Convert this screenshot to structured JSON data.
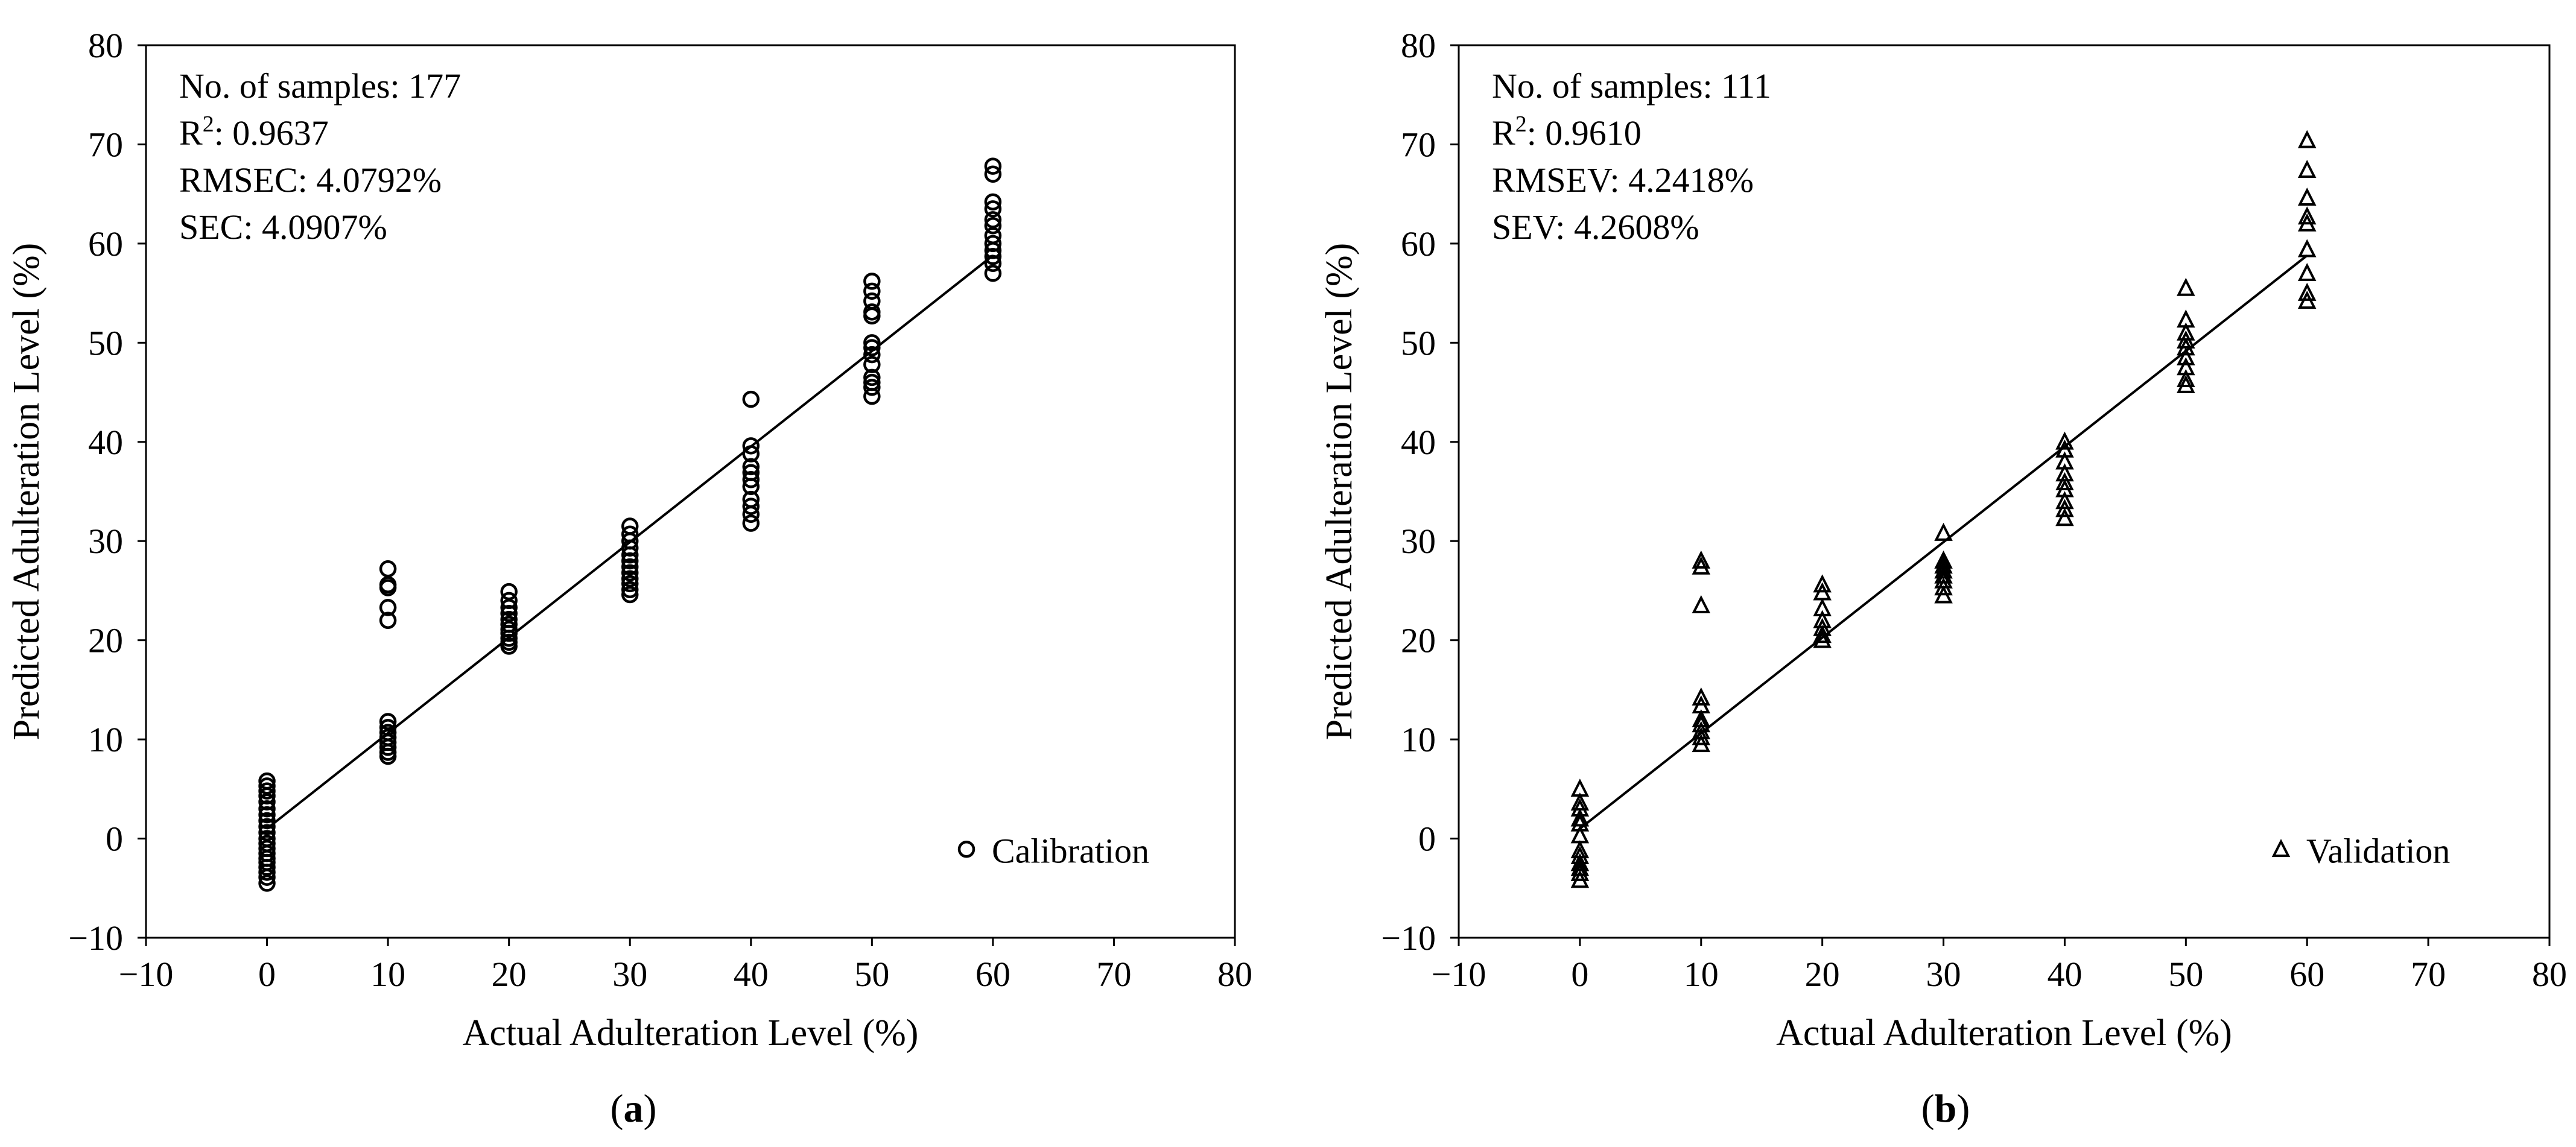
{
  "chart_data": [
    {
      "type": "scatter",
      "panel_label": "(a)",
      "panel_letter": "a",
      "xlabel": "Actual Adulteration Level (%)",
      "ylabel": "Predicted Adulteration Level (%)",
      "xlim": [
        -10,
        80
      ],
      "ylim": [
        -10,
        80
      ],
      "xticks": [
        -10,
        0,
        10,
        20,
        30,
        40,
        50,
        60,
        70,
        80
      ],
      "yticks": [
        -10,
        0,
        10,
        20,
        30,
        40,
        50,
        60,
        70,
        80
      ],
      "stats": [
        "No. of samples: 177",
        "R2: 0.9637",
        "RMSEC: 4.0792%",
        "SEC: 4.0907%"
      ],
      "legend": {
        "label": "Calibration",
        "marker": "circle",
        "position": "bottom-right"
      },
      "fit_line": {
        "x": [
          0,
          60
        ],
        "y": [
          1.0,
          58.8
        ]
      },
      "series": [
        {
          "name": "Calibration",
          "marker": "circle",
          "points": [
            [
              0,
              5.8
            ],
            [
              0,
              5.3
            ],
            [
              0,
              4.8
            ],
            [
              0,
              4.3
            ],
            [
              0,
              3.7
            ],
            [
              0,
              3.0
            ],
            [
              0,
              2.4
            ],
            [
              0,
              1.8
            ],
            [
              0,
              1.2
            ],
            [
              0,
              0.6
            ],
            [
              0,
              0.0
            ],
            [
              0,
              -0.5
            ],
            [
              0,
              -1.0
            ],
            [
              0,
              -1.5
            ],
            [
              0,
              -2.0
            ],
            [
              0,
              -2.4
            ],
            [
              0,
              -2.9
            ],
            [
              0,
              -3.4
            ],
            [
              0,
              -3.9
            ],
            [
              0,
              -4.5
            ],
            [
              10,
              27.2
            ],
            [
              10,
              25.6
            ],
            [
              10,
              25.3
            ],
            [
              10,
              23.3
            ],
            [
              10,
              22.0
            ],
            [
              10,
              11.8
            ],
            [
              10,
              11.2
            ],
            [
              10,
              10.7
            ],
            [
              10,
              10.2
            ],
            [
              10,
              9.7
            ],
            [
              10,
              9.2
            ],
            [
              10,
              8.7
            ],
            [
              10,
              8.3
            ],
            [
              20,
              24.9
            ],
            [
              20,
              24.0
            ],
            [
              20,
              23.3
            ],
            [
              20,
              22.7
            ],
            [
              20,
              22.1
            ],
            [
              20,
              21.6
            ],
            [
              20,
              21.1
            ],
            [
              20,
              20.7
            ],
            [
              20,
              20.2
            ],
            [
              20,
              19.8
            ],
            [
              20,
              19.4
            ],
            [
              30,
              31.5
            ],
            [
              30,
              30.7
            ],
            [
              30,
              30.0
            ],
            [
              30,
              29.3
            ],
            [
              30,
              28.6
            ],
            [
              30,
              28.0
            ],
            [
              30,
              27.4
            ],
            [
              30,
              26.8
            ],
            [
              30,
              26.2
            ],
            [
              30,
              25.7
            ],
            [
              30,
              25.1
            ],
            [
              30,
              24.6
            ],
            [
              40,
              44.3
            ],
            [
              40,
              39.6
            ],
            [
              40,
              38.8
            ],
            [
              40,
              37.5
            ],
            [
              40,
              36.9
            ],
            [
              40,
              36.2
            ],
            [
              40,
              35.5
            ],
            [
              40,
              34.2
            ],
            [
              40,
              33.5
            ],
            [
              40,
              32.7
            ],
            [
              40,
              31.8
            ],
            [
              50,
              56.2
            ],
            [
              50,
              55.2
            ],
            [
              50,
              54.2
            ],
            [
              50,
              53.1
            ],
            [
              50,
              52.7
            ],
            [
              50,
              50.0
            ],
            [
              50,
              49.5
            ],
            [
              50,
              48.8
            ],
            [
              50,
              47.8
            ],
            [
              50,
              46.5
            ],
            [
              50,
              46.0
            ],
            [
              50,
              45.5
            ],
            [
              50,
              44.6
            ],
            [
              60,
              67.8
            ],
            [
              60,
              67.0
            ],
            [
              60,
              64.2
            ],
            [
              60,
              63.5
            ],
            [
              60,
              62.4
            ],
            [
              60,
              61.8
            ],
            [
              60,
              60.8
            ],
            [
              60,
              60.0
            ],
            [
              60,
              59.3
            ],
            [
              60,
              58.7
            ],
            [
              60,
              58.0
            ],
            [
              60,
              57.0
            ]
          ]
        }
      ]
    },
    {
      "type": "scatter",
      "panel_label": "(b)",
      "panel_letter": "b",
      "xlabel": "Actual Adulteration Level (%)",
      "ylabel": "Predicted Adulteration Level (%)",
      "xlim": [
        -10,
        80
      ],
      "ylim": [
        -10,
        80
      ],
      "xticks": [
        -10,
        0,
        10,
        20,
        30,
        40,
        50,
        60,
        70,
        80
      ],
      "yticks": [
        -10,
        0,
        10,
        20,
        30,
        40,
        50,
        60,
        70,
        80
      ],
      "stats": [
        "No. of samples: 111",
        "R2: 0.9610",
        "RMSEV: 4.2418%",
        "SEV: 4.2608%"
      ],
      "legend": {
        "label": "Validation",
        "marker": "triangle",
        "position": "bottom-right"
      },
      "fit_line": {
        "x": [
          0,
          60
        ],
        "y": [
          1.0,
          58.8
        ]
      },
      "series": [
        {
          "name": "Validation",
          "marker": "triangle",
          "points": [
            [
              0,
              5.0
            ],
            [
              0,
              3.6
            ],
            [
              0,
              3.0
            ],
            [
              0,
              2.0
            ],
            [
              0,
              1.5
            ],
            [
              0,
              0.3
            ],
            [
              0,
              -1.2
            ],
            [
              0,
              -1.8
            ],
            [
              0,
              -2.5
            ],
            [
              0,
              -3.0
            ],
            [
              0,
              -3.5
            ],
            [
              0,
              -4.2
            ],
            [
              10,
              28.0
            ],
            [
              10,
              27.4
            ],
            [
              10,
              23.5
            ],
            [
              10,
              14.2
            ],
            [
              10,
              13.4
            ],
            [
              10,
              12.0
            ],
            [
              10,
              11.5
            ],
            [
              10,
              10.8
            ],
            [
              10,
              10.2
            ],
            [
              10,
              9.5
            ],
            [
              20,
              25.6
            ],
            [
              20,
              24.8
            ],
            [
              20,
              23.2
            ],
            [
              20,
              22.0
            ],
            [
              20,
              21.2
            ],
            [
              20,
              20.5
            ],
            [
              20,
              20.0
            ],
            [
              30,
              30.8
            ],
            [
              30,
              28.0
            ],
            [
              30,
              27.5
            ],
            [
              30,
              27.0
            ],
            [
              30,
              26.5
            ],
            [
              30,
              26.0
            ],
            [
              30,
              25.3
            ],
            [
              30,
              24.5
            ],
            [
              40,
              40.0
            ],
            [
              40,
              39.2
            ],
            [
              40,
              38.0
            ],
            [
              40,
              36.8
            ],
            [
              40,
              35.9
            ],
            [
              40,
              35.2
            ],
            [
              40,
              34.0
            ],
            [
              40,
              33.2
            ],
            [
              40,
              32.3
            ],
            [
              50,
              55.5
            ],
            [
              50,
              52.3
            ],
            [
              50,
              51.0
            ],
            [
              50,
              50.2
            ],
            [
              50,
              49.5
            ],
            [
              50,
              48.5
            ],
            [
              50,
              47.5
            ],
            [
              50,
              46.3
            ],
            [
              50,
              45.7
            ],
            [
              60,
              70.4
            ],
            [
              60,
              67.4
            ],
            [
              60,
              64.6
            ],
            [
              60,
              62.7
            ],
            [
              60,
              62.0
            ],
            [
              60,
              59.4
            ],
            [
              60,
              57.0
            ],
            [
              60,
              55.0
            ],
            [
              60,
              54.2
            ]
          ]
        }
      ]
    }
  ]
}
